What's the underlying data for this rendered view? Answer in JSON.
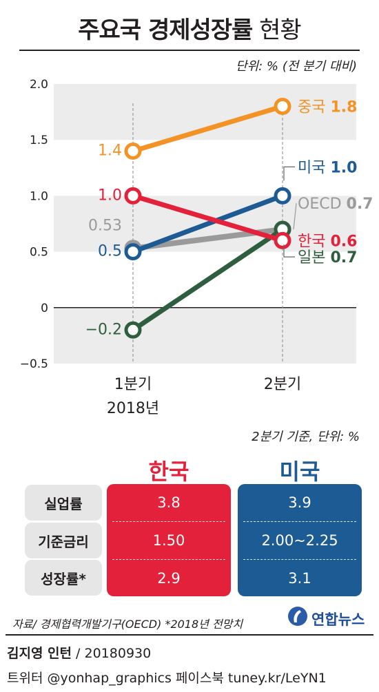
{
  "header": {
    "title_bold": "주요국 경제성장률",
    "title_light": "현황"
  },
  "colors": {
    "china": "#f39326",
    "usa": "#1d5b94",
    "korea": "#e4213a",
    "oecd": "#9a9a9a",
    "japan": "#2f5e3f",
    "band": "#ececec",
    "axis": "#231f20"
  },
  "chart_data": {
    "type": "line",
    "unit_label": "단위: % (전 분기 대비)",
    "x": [
      "1분기",
      "2분기"
    ],
    "x_sublabels": [
      "2018년",
      ""
    ],
    "ylim": [
      -0.5,
      2.0
    ],
    "y_ticks": [
      "2.0",
      "1.5",
      "1.0",
      "0.5",
      "0",
      "−0.5"
    ],
    "y_tick_values": [
      2.0,
      1.5,
      1.0,
      0.5,
      0,
      -0.5
    ],
    "grid": false,
    "series": [
      {
        "name": "OECD",
        "key": "oecd",
        "values": [
          0.53,
          0.7
        ],
        "start_label": "0.53",
        "end_name": "OECD",
        "end_value": "0.7"
      },
      {
        "name": "일본",
        "key": "japan",
        "values": [
          -0.2,
          0.7
        ],
        "start_label": "−0.2",
        "end_name": "일본",
        "end_value": "0.7"
      },
      {
        "name": "미국",
        "key": "usa",
        "values": [
          0.5,
          1.0
        ],
        "start_label": "0.5",
        "end_name": "미국",
        "end_value": "1.0"
      },
      {
        "name": "한국",
        "key": "korea",
        "values": [
          1.0,
          0.6
        ],
        "start_label": "1.0",
        "end_name": "한국",
        "end_value": "0.6"
      },
      {
        "name": "중국",
        "key": "china",
        "values": [
          1.4,
          1.8
        ],
        "start_label": "1.4",
        "end_name": "중국",
        "end_value": "1.8"
      }
    ]
  },
  "table": {
    "note": "2분기 기준, 단위: %",
    "headers": [
      "한국",
      "미국"
    ],
    "rows": [
      {
        "label": "실업률",
        "values": [
          "3.8",
          "3.9"
        ]
      },
      {
        "label": "기준금리",
        "values": [
          "1.50",
          "2.00~2.25"
        ]
      },
      {
        "label": "성장률*",
        "values": [
          "2.9",
          "3.1"
        ]
      }
    ]
  },
  "footer": {
    "source": "자료/ 경제협력개발기구(OECD) *2018년 전망치",
    "logo_text": "연합뉴스",
    "author": "김지영 인턴",
    "date": " / 20180930",
    "social": "트위터 @yonhap_graphics  페이스북 tuney.kr/LeYN1"
  }
}
